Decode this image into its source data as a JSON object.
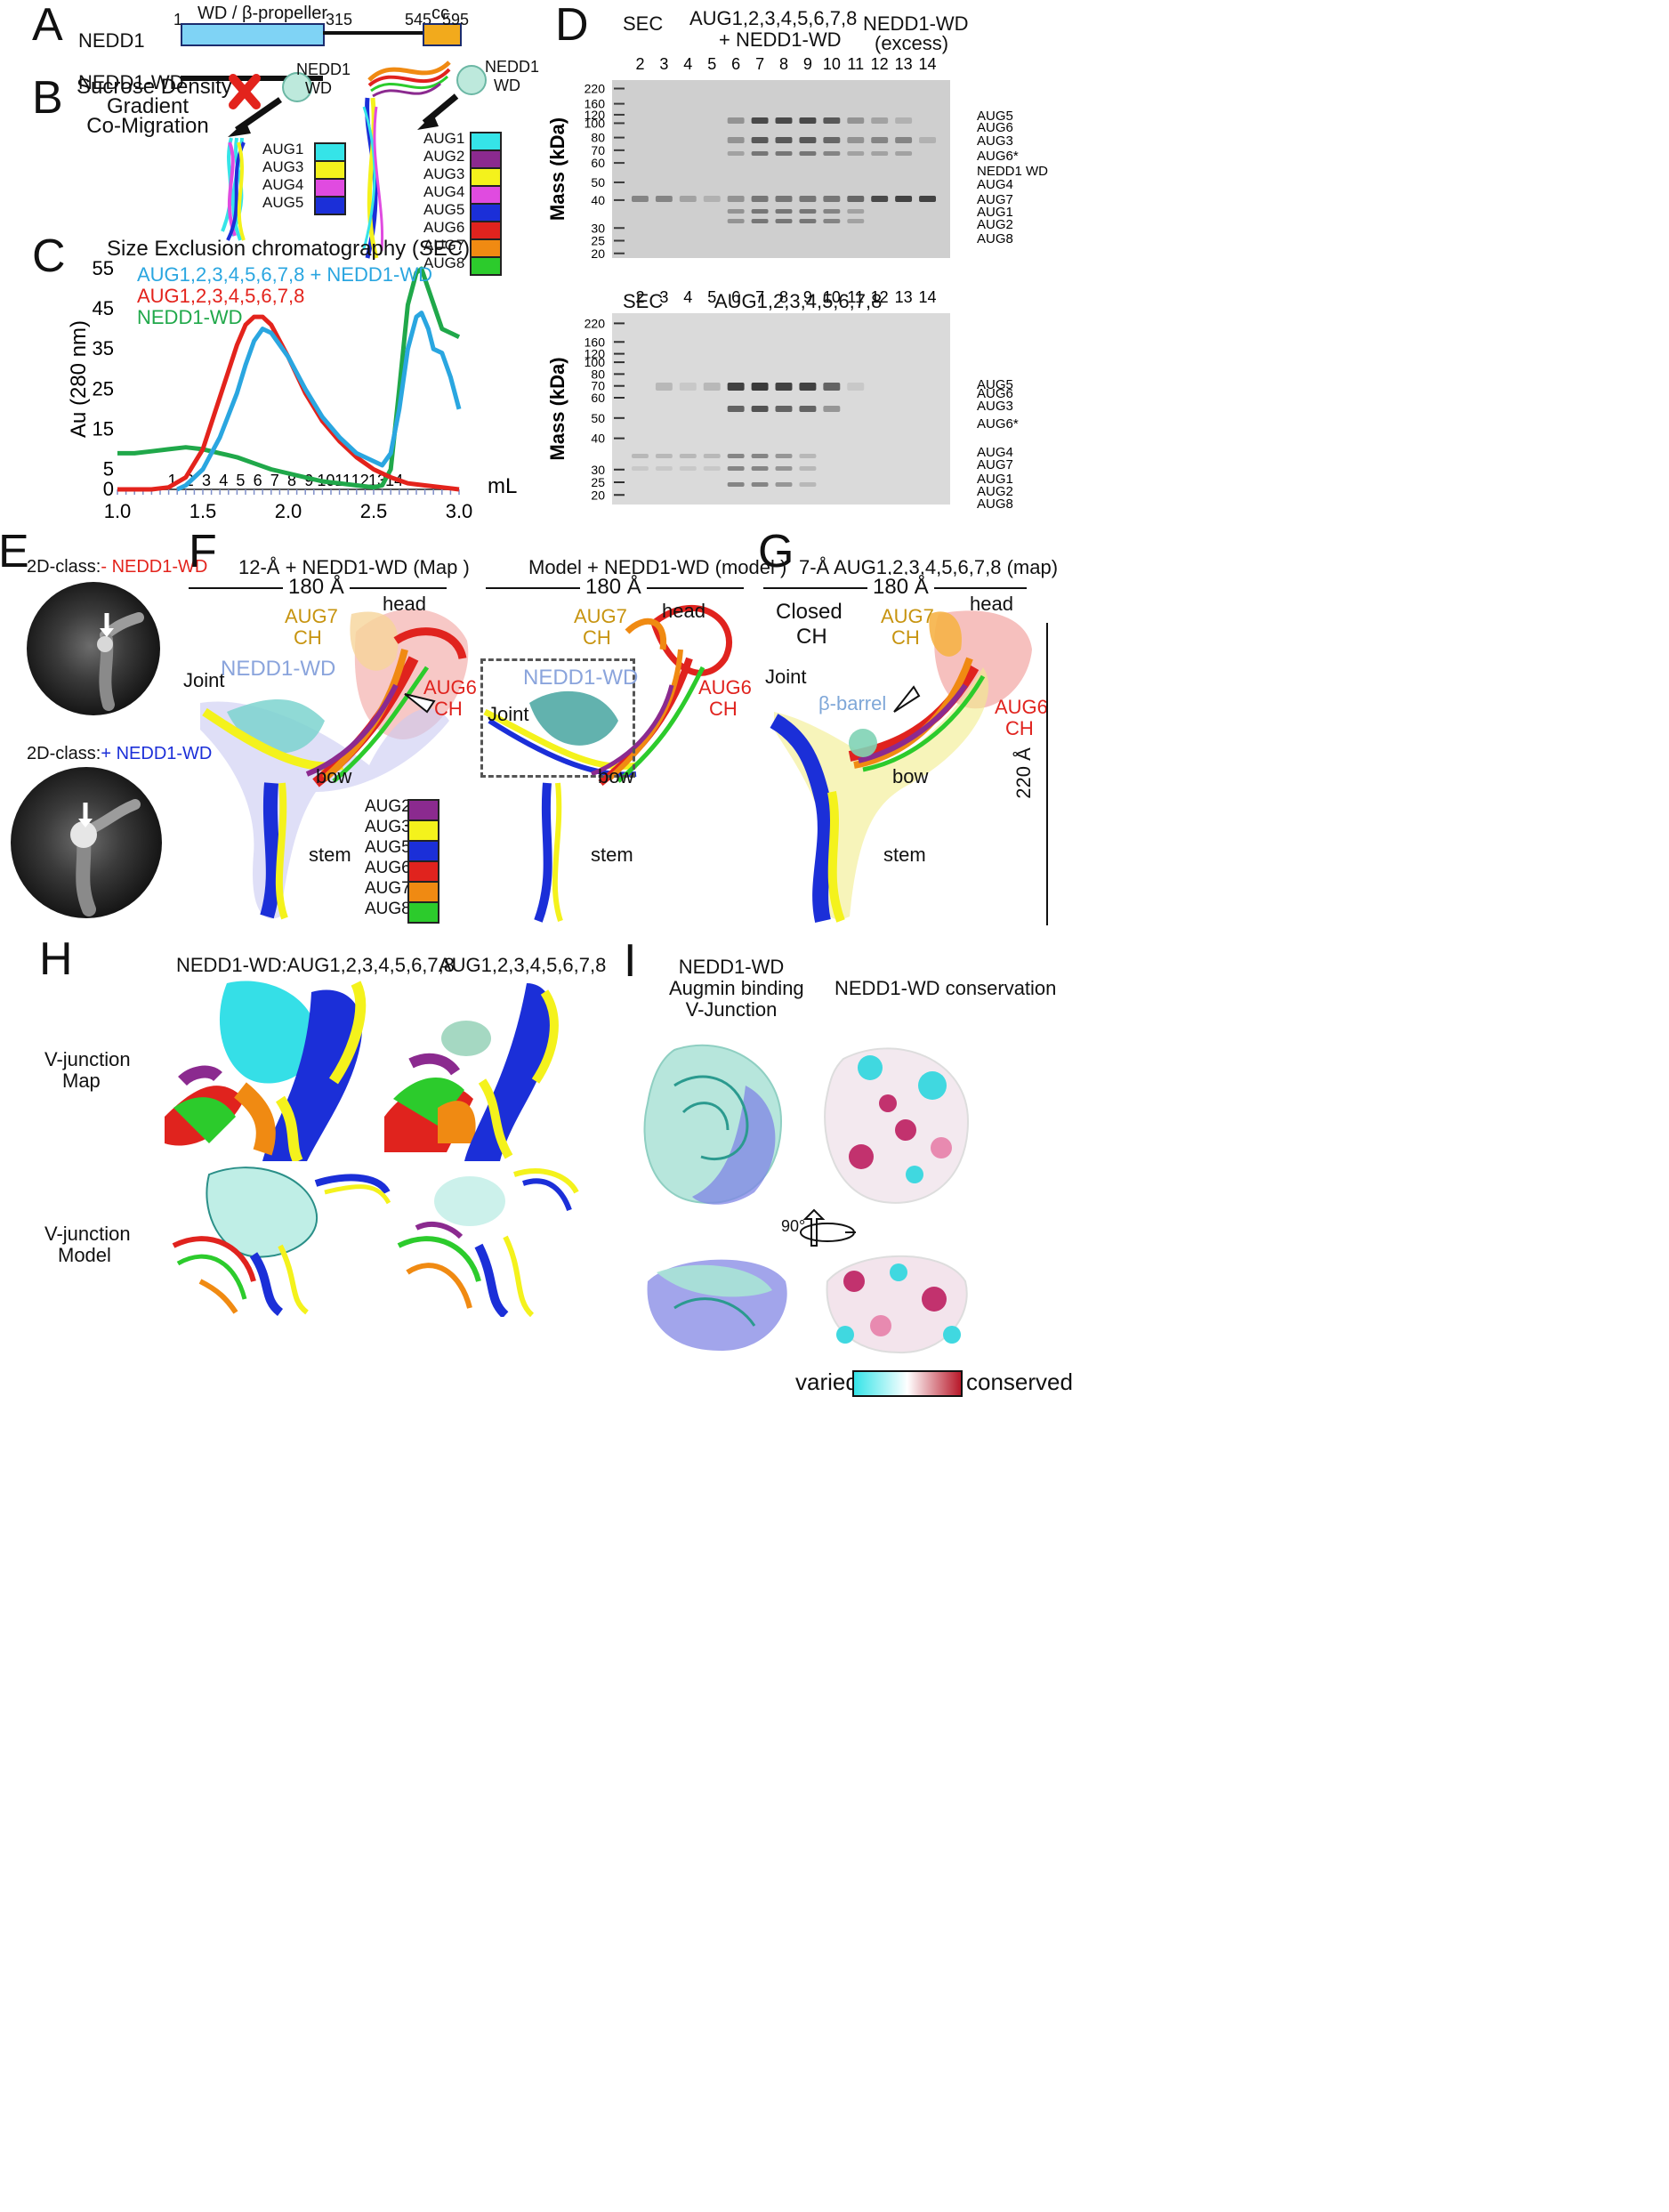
{
  "panels": {
    "A": {
      "label": "A",
      "row1_name": "NEDD1",
      "row2_name": "NEDD1-WD",
      "domain_label": "WD / β-propeller",
      "cc_label": "cc",
      "pos_1": "1",
      "pos_315": "315",
      "pos_545": "545",
      "pos_595": "595"
    },
    "B": {
      "label": "B",
      "method": [
        "Sucrose Density",
        "Gradient",
        "Co-Migration"
      ],
      "nedd1_wd_left": [
        "NEDD1",
        "WD"
      ],
      "nedd1_wd_right": [
        "NEDD1",
        "WD"
      ],
      "legend_left": [
        "AUG1",
        "AUG3",
        "AUG4",
        "AUG5"
      ],
      "legend_right": [
        "AUG1",
        "AUG2",
        "AUG3",
        "AUG4",
        "AUG5",
        "AUG6",
        "AUG7",
        "AUG8"
      ]
    },
    "C": {
      "label": "C",
      "title": "Size Exclusion chromatography (SEC)",
      "ylabel": "Au (280 nm)",
      "xunit": "mL",
      "fraction_numbers": [
        "1",
        "2",
        "3",
        "4",
        "5",
        "6",
        "7",
        "8",
        "9",
        "10",
        "11",
        "12",
        "13",
        "14"
      ]
    },
    "D": {
      "label": "D",
      "top_headers": {
        "sec": "SEC",
        "complex": [
          "AUG1,2,3,4,5,6,7,8",
          "+ NEDD1-WD"
        ],
        "excess": [
          "NEDD1-WD",
          "(excess)"
        ]
      },
      "lanes": [
        "2",
        "3",
        "4",
        "5",
        "6",
        "7",
        "8",
        "9",
        "10",
        "11",
        "12",
        "13",
        "14"
      ],
      "mass_label": "Mass (kDa)",
      "markers": [
        "220",
        "160",
        "120",
        "100",
        "80",
        "70",
        "60",
        "50",
        "40",
        "30",
        "25",
        "20"
      ],
      "top_bands": [
        "AUG5",
        "AUG6",
        "AUG3",
        "AUG6*",
        "NEDD1 WD",
        "AUG4",
        "AUG7",
        "AUG1",
        "AUG2",
        "AUG8"
      ],
      "bottom_headers": {
        "sec": "SEC",
        "complex": "AUG1,2,3,4,5,6,7,8"
      },
      "bottom_bands": [
        "AUG5",
        "AUG6",
        "AUG3",
        "AUG6*",
        "AUG4",
        "AUG7",
        "AUG1",
        "AUG2",
        "AUG8"
      ]
    },
    "E": {
      "label": "E",
      "minus_prefix": "2D-class:",
      "minus_text": "- NEDD1-WD",
      "plus_prefix": "2D-class:",
      "plus_text": "+ NEDD1-WD"
    },
    "F": {
      "label": "F",
      "map_title": "12-Å + NEDD1-WD  (Map )",
      "model_title": "Model + NEDD1-WD  (model )",
      "scale": "180 Å",
      "aug7": [
        "AUG7",
        "CH"
      ],
      "aug6": [
        "AUG6",
        "CH"
      ],
      "head": "head",
      "nedd1_wd": "NEDD1-WD",
      "joint": "Joint",
      "bow": "bow",
      "stem": "stem",
      "legend": [
        "AUG2",
        "AUG3",
        "AUG5",
        "AUG6",
        "AUG7",
        "AUG8"
      ]
    },
    "G": {
      "label": "G",
      "title": "7-Å AUG1,2,3,4,5,6,7,8 (map)",
      "scale": "180 Å",
      "closed": [
        "Closed",
        "CH"
      ],
      "aug7": [
        "AUG7",
        "CH"
      ],
      "aug6": [
        "AUG6",
        "CH"
      ],
      "head": "head",
      "joint": "Joint",
      "beta_barrel": "β-barrel",
      "bow": "bow",
      "stem": "stem",
      "height": "220 Å"
    },
    "H": {
      "label": "H",
      "col1": "NEDD1-WD:AUG1,2,3,4,5,6,7,8",
      "col2": "AUG1,2,3,4,5,6,7,8",
      "row1": [
        "V-junction",
        "Map"
      ],
      "row2": [
        "V-junction",
        "Model"
      ]
    },
    "I": {
      "label": "I",
      "col1": [
        "NEDD1-WD",
        "Augmin binding",
        "V-Junction"
      ],
      "col2": "NEDD1-WD conservation",
      "rotation": "90°",
      "scale_low": "varied",
      "scale_high": "conserved"
    }
  },
  "colors": {
    "AUG1": "#35e4e8",
    "AUG2": "#8b2a8f",
    "AUG3": "#f4f21c",
    "AUG4": "#e04be0",
    "AUG5": "#1b2fd8",
    "AUG6": "#e0231e",
    "AUG7": "#f08a12",
    "AUG8": "#2ccb2c",
    "nedd1_wd_bar": "#7fd3f5",
    "cc_bar": "#f2aa1c",
    "series_complex": "#2aa6e0",
    "series_aug": "#e3231c",
    "series_nedd1": "#20a84a"
  },
  "chart_data": {
    "type": "line",
    "title": "Size Exclusion chromatography (SEC)",
    "xlabel": "mL",
    "ylabel": "Au (280 nm)",
    "xlim": [
      1.0,
      3.0
    ],
    "ylim": [
      0,
      55
    ],
    "xticks": [
      1.0,
      1.5,
      2.0,
      2.5,
      3.0
    ],
    "yticks": [
      0,
      5,
      15,
      25,
      35,
      45,
      55
    ],
    "legend_position": "top-left",
    "series": [
      {
        "name": "AUG1,2,3,4,5,6,7,8 + NEDD1-WD",
        "x": [
          1.35,
          1.4,
          1.5,
          1.6,
          1.7,
          1.75,
          1.8,
          1.85,
          1.9,
          2.0,
          2.1,
          2.2,
          2.3,
          2.4,
          2.5,
          2.55,
          2.6,
          2.65,
          2.7,
          2.75,
          2.78,
          2.82,
          2.85,
          2.9,
          2.95,
          3.0
        ],
        "y": [
          0,
          1,
          5,
          13,
          24,
          31,
          37,
          40,
          39,
          33,
          25,
          18,
          13,
          9,
          7,
          6,
          9,
          20,
          35,
          43,
          44,
          40,
          35,
          34,
          28,
          20
        ]
      },
      {
        "name": "AUG1,2,3,4,5,6,7,8",
        "x": [
          1.0,
          1.1,
          1.2,
          1.3,
          1.4,
          1.5,
          1.6,
          1.7,
          1.75,
          1.8,
          1.85,
          1.9,
          2.0,
          2.1,
          2.2,
          2.3,
          2.4,
          2.5,
          2.6,
          2.7,
          2.8,
          2.9,
          3.0
        ],
        "y": [
          0,
          0,
          0,
          0.5,
          3,
          10,
          23,
          36,
          41,
          43,
          43,
          41,
          33,
          24,
          17,
          12,
          8,
          5,
          3,
          1.5,
          1,
          0.5,
          0
        ]
      },
      {
        "name": "NEDD1-WD",
        "x": [
          1.0,
          1.1,
          1.2,
          1.3,
          1.4,
          1.5,
          1.6,
          1.7,
          1.8,
          1.9,
          2.0,
          2.1,
          2.2,
          2.3,
          2.4,
          2.5,
          2.55,
          2.6,
          2.65,
          2.7,
          2.75,
          2.78,
          2.82,
          2.9,
          3.0
        ],
        "y": [
          9,
          9,
          9.5,
          10,
          10.5,
          10,
          9,
          8,
          6.5,
          5,
          4,
          3,
          2,
          1.5,
          1,
          0.5,
          1,
          5,
          25,
          46,
          54,
          55,
          50,
          40,
          38
        ]
      }
    ]
  }
}
